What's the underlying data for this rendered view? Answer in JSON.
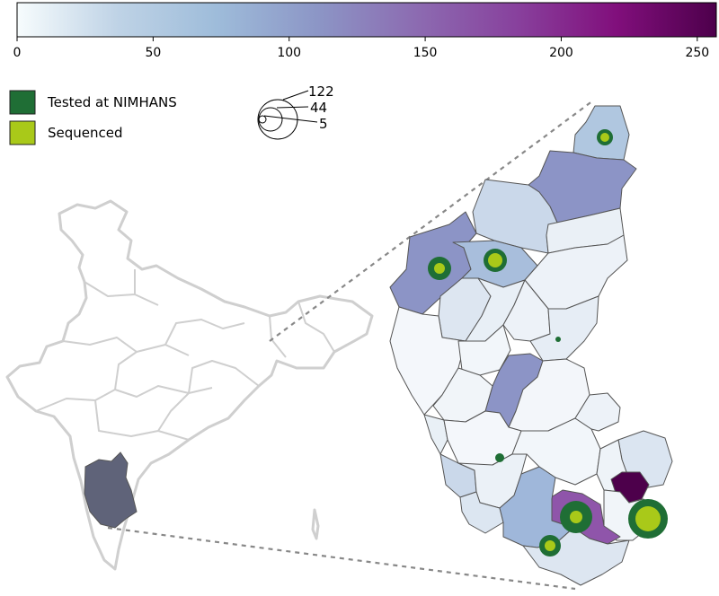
{
  "colorbar": {
    "min": 0,
    "max": 257,
    "ticks": [
      "0",
      "50",
      "100",
      "150",
      "200",
      "250"
    ],
    "tick_values": [
      0,
      50,
      100,
      150,
      200,
      250
    ],
    "colors": [
      "#f7fcfd",
      "#bfd3e6",
      "#9ebcda",
      "#8c96c6",
      "#8c6bb1",
      "#88419d",
      "#810f7c",
      "#4d004b"
    ]
  },
  "legend": {
    "tested_label": "Tested at NIMHANS",
    "tested_color": "#1f6e35",
    "sequenced_label": "Sequenced",
    "sequenced_color": "#a9c919"
  },
  "size_legend": {
    "labels": [
      "122",
      "44",
      "5"
    ],
    "values": [
      122,
      44,
      5
    ]
  },
  "colors": {
    "india_fill": "#ffffff",
    "india_stroke": "#cfcfcf",
    "karnataka_fill": "#5f6379",
    "district_stroke": "#555555",
    "connector": "#888888"
  }
}
